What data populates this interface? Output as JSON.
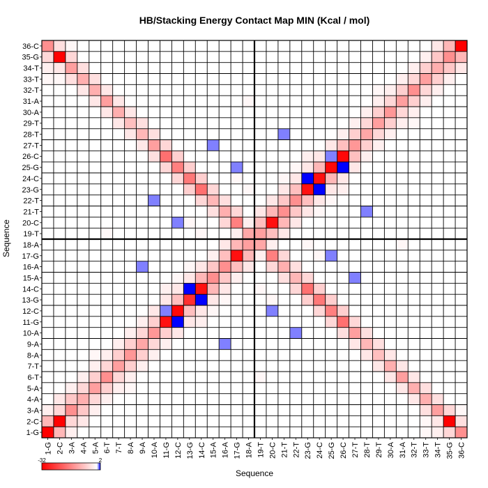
{
  "chart_data": {
    "type": "heatmap",
    "title": "HB/Stacking Energy Contact Map MIN (Kcal / mol)",
    "xlabel": "Sequence",
    "ylabel": "Sequence",
    "labels": [
      "1-G",
      "2-C",
      "3-A",
      "4-A",
      "5-A",
      "6-T",
      "7-T",
      "8-A",
      "9-A",
      "10-A",
      "11-G",
      "12-C",
      "13-G",
      "14-C",
      "15-A",
      "16-A",
      "17-G",
      "18-A",
      "19-T",
      "20-C",
      "21-T",
      "22-T",
      "23-G",
      "24-C",
      "25-G",
      "26-C",
      "27-T",
      "28-T",
      "29-T",
      "30-A",
      "31-A",
      "32-T",
      "33-T",
      "34-T",
      "35-G",
      "36-C"
    ],
    "colorbar": {
      "min_label": "-32",
      "max_label": "2",
      "min": -32,
      "max": 2
    },
    "divider_after_index": 18,
    "cells": [
      [
        1,
        1,
        -32
      ],
      [
        2,
        2,
        -32
      ],
      [
        3,
        3,
        -14
      ],
      [
        4,
        4,
        -10
      ],
      [
        5,
        5,
        -12
      ],
      [
        6,
        6,
        -14
      ],
      [
        7,
        7,
        -12
      ],
      [
        8,
        8,
        -13
      ],
      [
        9,
        9,
        -11
      ],
      [
        10,
        10,
        -13
      ],
      [
        11,
        11,
        -30
      ],
      [
        12,
        12,
        -31
      ],
      [
        13,
        13,
        -26
      ],
      [
        14,
        14,
        -30
      ],
      [
        15,
        15,
        -14
      ],
      [
        16,
        16,
        -14
      ],
      [
        17,
        17,
        -30
      ],
      [
        18,
        18,
        -12
      ],
      [
        19,
        19,
        -12
      ],
      [
        20,
        20,
        -30
      ],
      [
        21,
        21,
        -14
      ],
      [
        22,
        22,
        -14
      ],
      [
        23,
        23,
        -30
      ],
      [
        24,
        24,
        -30
      ],
      [
        25,
        25,
        -31
      ],
      [
        26,
        26,
        -31
      ],
      [
        27,
        27,
        -13
      ],
      [
        28,
        28,
        -11
      ],
      [
        29,
        29,
        -12
      ],
      [
        30,
        30,
        -13
      ],
      [
        31,
        31,
        -12
      ],
      [
        32,
        32,
        -14
      ],
      [
        33,
        33,
        -12
      ],
      [
        34,
        34,
        -10
      ],
      [
        35,
        35,
        -14
      ],
      [
        36,
        36,
        -32
      ],
      [
        12,
        11,
        2
      ],
      [
        11,
        12,
        1
      ],
      [
        14,
        13,
        2
      ],
      [
        13,
        14,
        2
      ],
      [
        25,
        26,
        1
      ],
      [
        26,
        25,
        2
      ],
      [
        23,
        24,
        2
      ],
      [
        24,
        23,
        2
      ],
      [
        1,
        2,
        -9
      ],
      [
        2,
        1,
        -9
      ],
      [
        2,
        3,
        -5
      ],
      [
        3,
        2,
        -5
      ],
      [
        3,
        4,
        -7
      ],
      [
        4,
        3,
        -7
      ],
      [
        4,
        5,
        -5
      ],
      [
        5,
        4,
        -5
      ],
      [
        5,
        6,
        -6
      ],
      [
        6,
        5,
        -6
      ],
      [
        6,
        7,
        -5
      ],
      [
        7,
        6,
        -5
      ],
      [
        7,
        8,
        -6
      ],
      [
        8,
        7,
        -6
      ],
      [
        8,
        9,
        -6
      ],
      [
        9,
        8,
        -6
      ],
      [
        9,
        10,
        -5
      ],
      [
        10,
        9,
        -5
      ],
      [
        10,
        11,
        -6
      ],
      [
        11,
        10,
        -6
      ],
      [
        12,
        13,
        -8
      ],
      [
        13,
        12,
        -8
      ],
      [
        14,
        15,
        -9
      ],
      [
        15,
        14,
        -9
      ],
      [
        15,
        16,
        -7
      ],
      [
        16,
        15,
        -7
      ],
      [
        16,
        17,
        -8
      ],
      [
        17,
        16,
        -8
      ],
      [
        17,
        18,
        -9
      ],
      [
        18,
        17,
        -9
      ],
      [
        18,
        19,
        -7
      ],
      [
        19,
        18,
        -7
      ],
      [
        19,
        20,
        -8
      ],
      [
        20,
        19,
        -8
      ],
      [
        20,
        21,
        -9
      ],
      [
        21,
        20,
        -9
      ],
      [
        21,
        22,
        -7
      ],
      [
        22,
        21,
        -7
      ],
      [
        22,
        23,
        -8
      ],
      [
        23,
        22,
        -8
      ],
      [
        24,
        25,
        -9
      ],
      [
        25,
        24,
        -9
      ],
      [
        26,
        27,
        -8
      ],
      [
        27,
        26,
        -8
      ],
      [
        27,
        28,
        -6
      ],
      [
        28,
        27,
        -6
      ],
      [
        28,
        29,
        -5
      ],
      [
        29,
        28,
        -5
      ],
      [
        29,
        30,
        -6
      ],
      [
        30,
        29,
        -6
      ],
      [
        30,
        31,
        -5
      ],
      [
        31,
        30,
        -5
      ],
      [
        31,
        32,
        -6
      ],
      [
        32,
        31,
        -6
      ],
      [
        32,
        33,
        -5
      ],
      [
        33,
        32,
        -5
      ],
      [
        33,
        34,
        -6
      ],
      [
        34,
        33,
        -6
      ],
      [
        34,
        35,
        -7
      ],
      [
        35,
        34,
        -7
      ],
      [
        35,
        36,
        -9
      ],
      [
        36,
        35,
        -9
      ],
      [
        1,
        36,
        -14
      ],
      [
        36,
        1,
        -14
      ],
      [
        2,
        35,
        -32
      ],
      [
        35,
        2,
        -32
      ],
      [
        3,
        34,
        -12
      ],
      [
        34,
        3,
        -12
      ],
      [
        4,
        33,
        -10
      ],
      [
        33,
        4,
        -10
      ],
      [
        5,
        32,
        -10
      ],
      [
        32,
        5,
        -10
      ],
      [
        6,
        31,
        -12
      ],
      [
        31,
        6,
        -12
      ],
      [
        7,
        30,
        -10
      ],
      [
        30,
        7,
        -10
      ],
      [
        8,
        29,
        -8
      ],
      [
        29,
        8,
        -8
      ],
      [
        9,
        28,
        -9
      ],
      [
        28,
        9,
        -9
      ],
      [
        10,
        27,
        -12
      ],
      [
        27,
        10,
        -12
      ],
      [
        11,
        26,
        -18
      ],
      [
        26,
        11,
        -18
      ],
      [
        12,
        25,
        -16
      ],
      [
        25,
        12,
        -16
      ],
      [
        13,
        24,
        -17
      ],
      [
        24,
        13,
        -17
      ],
      [
        14,
        23,
        -18
      ],
      [
        23,
        14,
        -18
      ],
      [
        15,
        22,
        -9
      ],
      [
        22,
        15,
        -9
      ],
      [
        16,
        21,
        -10
      ],
      [
        21,
        16,
        -10
      ],
      [
        17,
        20,
        -16
      ],
      [
        20,
        17,
        -16
      ],
      [
        18,
        19,
        -11
      ],
      [
        19,
        18,
        -11
      ],
      [
        1,
        35,
        -5
      ],
      [
        35,
        1,
        -5
      ],
      [
        2,
        36,
        -4
      ],
      [
        36,
        2,
        -4
      ],
      [
        3,
        35,
        -5
      ],
      [
        35,
        3,
        -5
      ],
      [
        2,
        34,
        -3
      ],
      [
        34,
        2,
        -3
      ],
      [
        4,
        34,
        -4
      ],
      [
        34,
        4,
        -4
      ],
      [
        3,
        33,
        -4
      ],
      [
        33,
        3,
        -4
      ],
      [
        5,
        33,
        -4
      ],
      [
        33,
        5,
        -4
      ],
      [
        4,
        32,
        -3
      ],
      [
        32,
        4,
        -3
      ],
      [
        6,
        32,
        -3
      ],
      [
        32,
        6,
        -3
      ],
      [
        5,
        31,
        -3
      ],
      [
        31,
        5,
        -3
      ],
      [
        7,
        31,
        -3
      ],
      [
        31,
        7,
        -3
      ],
      [
        6,
        30,
        -3
      ],
      [
        30,
        6,
        -3
      ],
      [
        8,
        30,
        -3
      ],
      [
        30,
        8,
        -3
      ],
      [
        7,
        29,
        -3
      ],
      [
        29,
        7,
        -3
      ],
      [
        9,
        29,
        -4
      ],
      [
        29,
        9,
        -4
      ],
      [
        8,
        28,
        -3
      ],
      [
        28,
        8,
        -3
      ],
      [
        10,
        28,
        -4
      ],
      [
        28,
        10,
        -4
      ],
      [
        9,
        27,
        -3
      ],
      [
        27,
        9,
        -3
      ],
      [
        11,
        27,
        -5
      ],
      [
        27,
        11,
        -5
      ],
      [
        10,
        26,
        -4
      ],
      [
        26,
        10,
        -4
      ],
      [
        12,
        26,
        -6
      ],
      [
        26,
        12,
        -6
      ],
      [
        11,
        25,
        -5
      ],
      [
        25,
        11,
        -5
      ],
      [
        13,
        25,
        -6
      ],
      [
        25,
        13,
        -6
      ],
      [
        12,
        24,
        -5
      ],
      [
        24,
        12,
        -5
      ],
      [
        14,
        24,
        -6
      ],
      [
        24,
        14,
        -6
      ],
      [
        13,
        23,
        -6
      ],
      [
        23,
        13,
        -6
      ],
      [
        15,
        23,
        -5
      ],
      [
        23,
        15,
        -5
      ],
      [
        14,
        22,
        -5
      ],
      [
        22,
        14,
        -5
      ],
      [
        16,
        22,
        -4
      ],
      [
        22,
        16,
        -4
      ],
      [
        15,
        21,
        -4
      ],
      [
        21,
        15,
        -4
      ],
      [
        17,
        21,
        -5
      ],
      [
        21,
        17,
        -5
      ],
      [
        16,
        20,
        -5
      ],
      [
        20,
        16,
        -5
      ],
      [
        18,
        20,
        -5
      ],
      [
        20,
        18,
        -5
      ],
      [
        17,
        19,
        -4
      ],
      [
        19,
        17,
        -4
      ],
      [
        1,
        3,
        -2
      ],
      [
        3,
        1,
        -2
      ],
      [
        2,
        4,
        -3
      ],
      [
        4,
        2,
        -3
      ],
      [
        3,
        5,
        -2
      ],
      [
        5,
        3,
        -2
      ],
      [
        4,
        6,
        -2
      ],
      [
        6,
        4,
        -2
      ],
      [
        5,
        7,
        -2
      ],
      [
        7,
        5,
        -2
      ],
      [
        6,
        8,
        -2
      ],
      [
        8,
        6,
        -2
      ],
      [
        7,
        9,
        -2
      ],
      [
        9,
        7,
        -2
      ],
      [
        8,
        10,
        -2
      ],
      [
        10,
        8,
        -2
      ],
      [
        9,
        11,
        -2
      ],
      [
        11,
        9,
        -2
      ],
      [
        10,
        12,
        -3
      ],
      [
        12,
        10,
        -3
      ],
      [
        11,
        13,
        -3
      ],
      [
        13,
        11,
        -3
      ],
      [
        12,
        14,
        -3
      ],
      [
        14,
        12,
        -3
      ],
      [
        13,
        15,
        -3
      ],
      [
        15,
        13,
        -3
      ],
      [
        14,
        16,
        -3
      ],
      [
        16,
        14,
        -3
      ],
      [
        15,
        17,
        -2
      ],
      [
        17,
        15,
        -2
      ],
      [
        16,
        18,
        -3
      ],
      [
        18,
        16,
        -3
      ],
      [
        17,
        19,
        -2
      ],
      [
        19,
        17,
        -2
      ],
      [
        18,
        20,
        -2
      ],
      [
        20,
        18,
        -2
      ],
      [
        19,
        21,
        -3
      ],
      [
        21,
        19,
        -3
      ],
      [
        20,
        22,
        -3
      ],
      [
        22,
        20,
        -3
      ],
      [
        21,
        23,
        -3
      ],
      [
        23,
        21,
        -3
      ],
      [
        22,
        24,
        -3
      ],
      [
        24,
        22,
        -3
      ],
      [
        23,
        25,
        -3
      ],
      [
        25,
        23,
        -3
      ],
      [
        24,
        26,
        -3
      ],
      [
        26,
        24,
        -3
      ],
      [
        25,
        27,
        -3
      ],
      [
        27,
        25,
        -3
      ],
      [
        26,
        28,
        -2
      ],
      [
        28,
        26,
        -2
      ],
      [
        27,
        29,
        -2
      ],
      [
        29,
        27,
        -2
      ],
      [
        28,
        30,
        -2
      ],
      [
        30,
        28,
        -2
      ],
      [
        29,
        31,
        -2
      ],
      [
        31,
        29,
        -2
      ],
      [
        30,
        32,
        -2
      ],
      [
        32,
        30,
        -2
      ],
      [
        31,
        33,
        -2
      ],
      [
        33,
        31,
        -2
      ],
      [
        32,
        34,
        -2
      ],
      [
        34,
        32,
        -2
      ],
      [
        33,
        35,
        -2
      ],
      [
        35,
        33,
        -2
      ],
      [
        34,
        36,
        -3
      ],
      [
        36,
        34,
        -3
      ],
      [
        1,
        34,
        -2
      ],
      [
        34,
        1,
        -2
      ],
      [
        1,
        33,
        -1
      ],
      [
        33,
        1,
        -1
      ],
      [
        2,
        33,
        -1
      ],
      [
        33,
        2,
        -1
      ],
      [
        36,
        3,
        -1
      ],
      [
        3,
        36,
        -1
      ],
      [
        12,
        15,
        -1
      ],
      [
        15,
        12,
        -1
      ],
      [
        13,
        16,
        -1
      ],
      [
        16,
        13,
        -1
      ],
      [
        22,
        25,
        -1
      ],
      [
        25,
        22,
        -1
      ],
      [
        21,
        24,
        -1
      ],
      [
        24,
        21,
        -1
      ],
      [
        11,
        14,
        -2
      ],
      [
        14,
        11,
        -2
      ],
      [
        23,
        26,
        -2
      ],
      [
        26,
        23,
        -2
      ],
      [
        5,
        8,
        -1
      ],
      [
        8,
        5,
        -1
      ],
      [
        29,
        32,
        -1
      ],
      [
        32,
        29,
        -1
      ],
      [
        19,
        14,
        -1
      ],
      [
        14,
        19,
        -1
      ],
      [
        20,
        13,
        -1
      ],
      [
        13,
        20,
        -1
      ],
      [
        18,
        23,
        -1
      ],
      [
        23,
        18,
        -1
      ],
      [
        17,
        24,
        -1
      ],
      [
        24,
        17,
        -1
      ],
      [
        12,
        20,
        1
      ],
      [
        20,
        12,
        1
      ],
      [
        25,
        17,
        1
      ],
      [
        17,
        25,
        1
      ],
      [
        9,
        16,
        1
      ],
      [
        16,
        9,
        1
      ],
      [
        28,
        21,
        1
      ],
      [
        21,
        28,
        1
      ],
      [
        6,
        19,
        -1
      ],
      [
        19,
        6,
        -1
      ],
      [
        31,
        18,
        -1
      ],
      [
        18,
        31,
        -1
      ],
      [
        10,
        22,
        1
      ],
      [
        22,
        10,
        1
      ],
      [
        27,
        15,
        1
      ],
      [
        15,
        27,
        1
      ]
    ]
  }
}
